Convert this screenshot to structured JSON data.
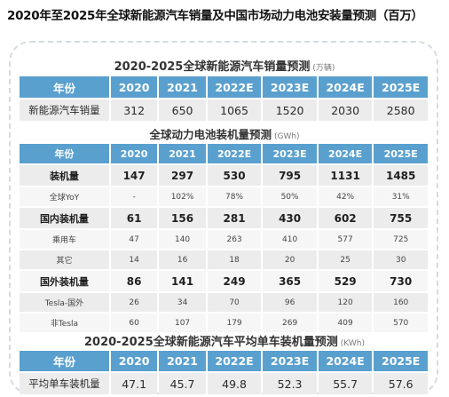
{
  "page_title": "2020年至2025年全球新能源汽车销量及中国市场动力电池安装量预测（百万）",
  "ev_sales": {
    "title": "2020-2025全球新能源汽车销量预测",
    "unit": "(万辆)",
    "header": [
      "年份",
      "2020",
      "2021",
      "2022E",
      "2023E",
      "2024E",
      "2025E"
    ],
    "rows": [
      {
        "label": "新能源汽车销量",
        "values": [
          "312",
          "650",
          "1065",
          "1520",
          "2030",
          "2580"
        ]
      }
    ]
  },
  "battery_install": {
    "title": "全球动力电池装机量预测",
    "unit": "(GWh)",
    "header": [
      "年份",
      "2020",
      "2021",
      "2022E",
      "2023E",
      "2024E",
      "2025E"
    ],
    "rows": [
      {
        "label": "装机量",
        "values": [
          "147",
          "297",
          "530",
          "795",
          "1131",
          "1485"
        ]
      },
      {
        "label": "全球YoY",
        "values": [
          "-",
          "102%",
          "78%",
          "50%",
          "42%",
          "31%"
        ]
      },
      {
        "label": "国内装机量",
        "values": [
          "61",
          "156",
          "281",
          "430",
          "602",
          "755"
        ]
      },
      {
        "label": "乘用车",
        "values": [
          "47",
          "140",
          "263",
          "410",
          "577",
          "725"
        ]
      },
      {
        "label": "其它",
        "values": [
          "14",
          "16",
          "18",
          "20",
          "25",
          "30"
        ]
      },
      {
        "label": "国外装机量",
        "values": [
          "86",
          "141",
          "249",
          "365",
          "529",
          "730"
        ]
      },
      {
        "label": "Tesla-国外",
        "values": [
          "26",
          "34",
          "70",
          "96",
          "120",
          "160"
        ]
      },
      {
        "label": "非Tesla",
        "values": [
          "60",
          "107",
          "179",
          "269",
          "409",
          "570"
        ]
      }
    ]
  },
  "avg_capacity": {
    "title": "2020-2025全球新能源汽车平均单车装机量预测",
    "unit": "(KWh)",
    "header": [
      "年份",
      "2020",
      "2021",
      "2022E",
      "2023E",
      "2024E",
      "2025E"
    ],
    "rows": [
      {
        "label": "平均单车装机量",
        "values": [
          "47.1",
          "45.7",
          "49.8",
          "52.3",
          "55.7",
          "57.6"
        ]
      }
    ]
  }
}
